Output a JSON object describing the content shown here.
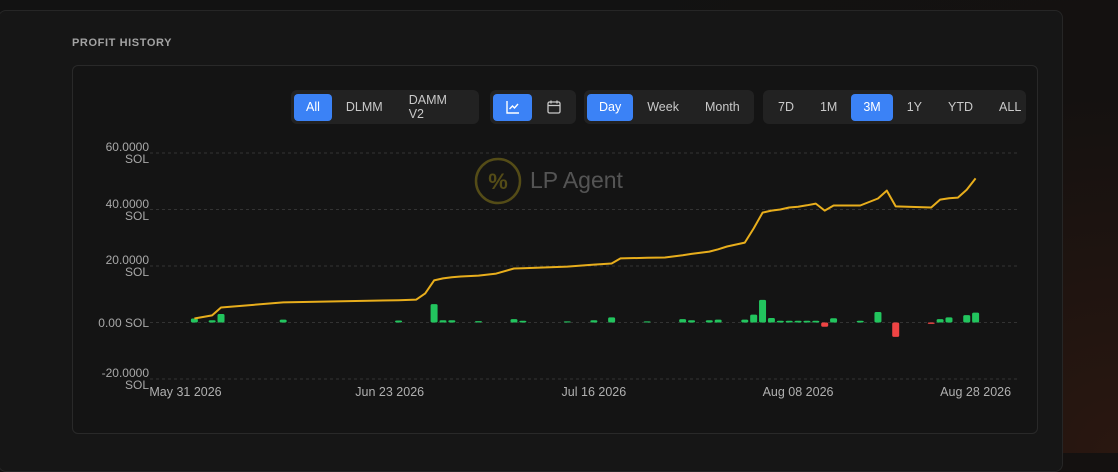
{
  "ui": {
    "title": "PROFIT HISTORY",
    "button_groups": [
      {
        "buttons": [
          "All",
          "DLMM",
          "DAMM V2"
        ],
        "active": 0
      },
      {
        "buttons": [
          "Day",
          "Week",
          "Month"
        ],
        "active": 0
      },
      {
        "buttons": [
          "7D",
          "1M",
          "3M",
          "1Y",
          "YTD",
          "ALL"
        ],
        "active": 2
      }
    ]
  },
  "chart_data": {
    "type": "line-bar",
    "watermark": "LP Agent",
    "x": [
      "2026-06-01",
      "2026-06-03",
      "2026-06-04",
      "2026-06-11",
      "2026-06-24",
      "2026-06-26",
      "2026-06-27",
      "2026-06-28",
      "2026-06-29",
      "2026-06-30",
      "2026-07-01",
      "2026-07-03",
      "2026-07-05",
      "2026-07-07",
      "2026-07-08",
      "2026-07-13",
      "2026-07-16",
      "2026-07-18",
      "2026-07-19",
      "2026-07-22",
      "2026-07-24",
      "2026-07-26",
      "2026-07-27",
      "2026-07-29",
      "2026-07-30",
      "2026-07-31",
      "2026-08-02",
      "2026-08-03",
      "2026-08-04",
      "2026-08-05",
      "2026-08-06",
      "2026-08-07",
      "2026-08-08",
      "2026-08-09",
      "2026-08-10",
      "2026-08-11",
      "2026-08-12",
      "2026-08-15",
      "2026-08-17",
      "2026-08-18",
      "2026-08-19",
      "2026-08-23",
      "2026-08-24",
      "2026-08-25",
      "2026-08-26",
      "2026-08-27",
      "2026-08-28"
    ],
    "series": [
      {
        "kind": "line",
        "color": "#e8ae1c",
        "values": [
          1.4,
          2.5,
          5.3,
          7.1,
          7.9,
          8.1,
          10.3,
          14.9,
          15.6,
          16.0,
          16.3,
          16.6,
          17.3,
          19.1,
          19.2,
          19.8,
          20.5,
          20.9,
          22.7,
          22.9,
          23.0,
          23.8,
          24.3,
          25.1,
          25.9,
          26.9,
          28.3,
          33.3,
          38.9,
          39.6,
          40.0,
          40.7,
          41.0,
          41.5,
          42.1,
          39.6,
          41.4,
          41.4,
          43.9,
          46.7,
          41.1,
          40.7,
          43.5,
          44.0,
          44.2,
          47.0,
          51.0
        ]
      },
      {
        "kind": "bar",
        "color": "#22c55e",
        "negative_color": "#ef4444",
        "values": [
          1.4,
          0.8,
          3.0,
          1.0,
          0.7,
          null,
          null,
          6.5,
          0.8,
          0.8,
          null,
          0.5,
          null,
          1.2,
          0.6,
          0.4,
          0.8,
          1.8,
          null,
          0.4,
          null,
          1.2,
          0.8,
          0.8,
          1.0,
          null,
          1.0,
          2.8,
          8.0,
          1.6,
          0.6,
          0.6,
          0.6,
          0.6,
          0.6,
          -1.5,
          1.5,
          0.6,
          3.7,
          null,
          -5.1,
          -0.5,
          1.2,
          1.8,
          null,
          2.6,
          3.5
        ]
      }
    ],
    "xlim": [
      "2026-05-27",
      "2026-09-02"
    ],
    "xticks": [
      {
        "value": "2026-05-31",
        "label": "May 31 2026"
      },
      {
        "value": "2026-06-23",
        "label": "Jun 23 2026"
      },
      {
        "value": "2026-07-16",
        "label": "Jul 16 2026"
      },
      {
        "value": "2026-08-08",
        "label": "Aug 08 2026"
      },
      {
        "value": "2026-08-28",
        "label": "Aug 28 2026"
      }
    ],
    "ylim": [
      -20,
      60
    ],
    "yticks": [
      {
        "value": 60,
        "label": "60.0000 SOL"
      },
      {
        "value": 40,
        "label": "40.0000 SOL"
      },
      {
        "value": 20,
        "label": "20.0000 SOL"
      },
      {
        "value": 0,
        "label": "0.00 SOL"
      },
      {
        "value": -20,
        "label": "-20.0000 SOL"
      }
    ],
    "grid": true
  }
}
